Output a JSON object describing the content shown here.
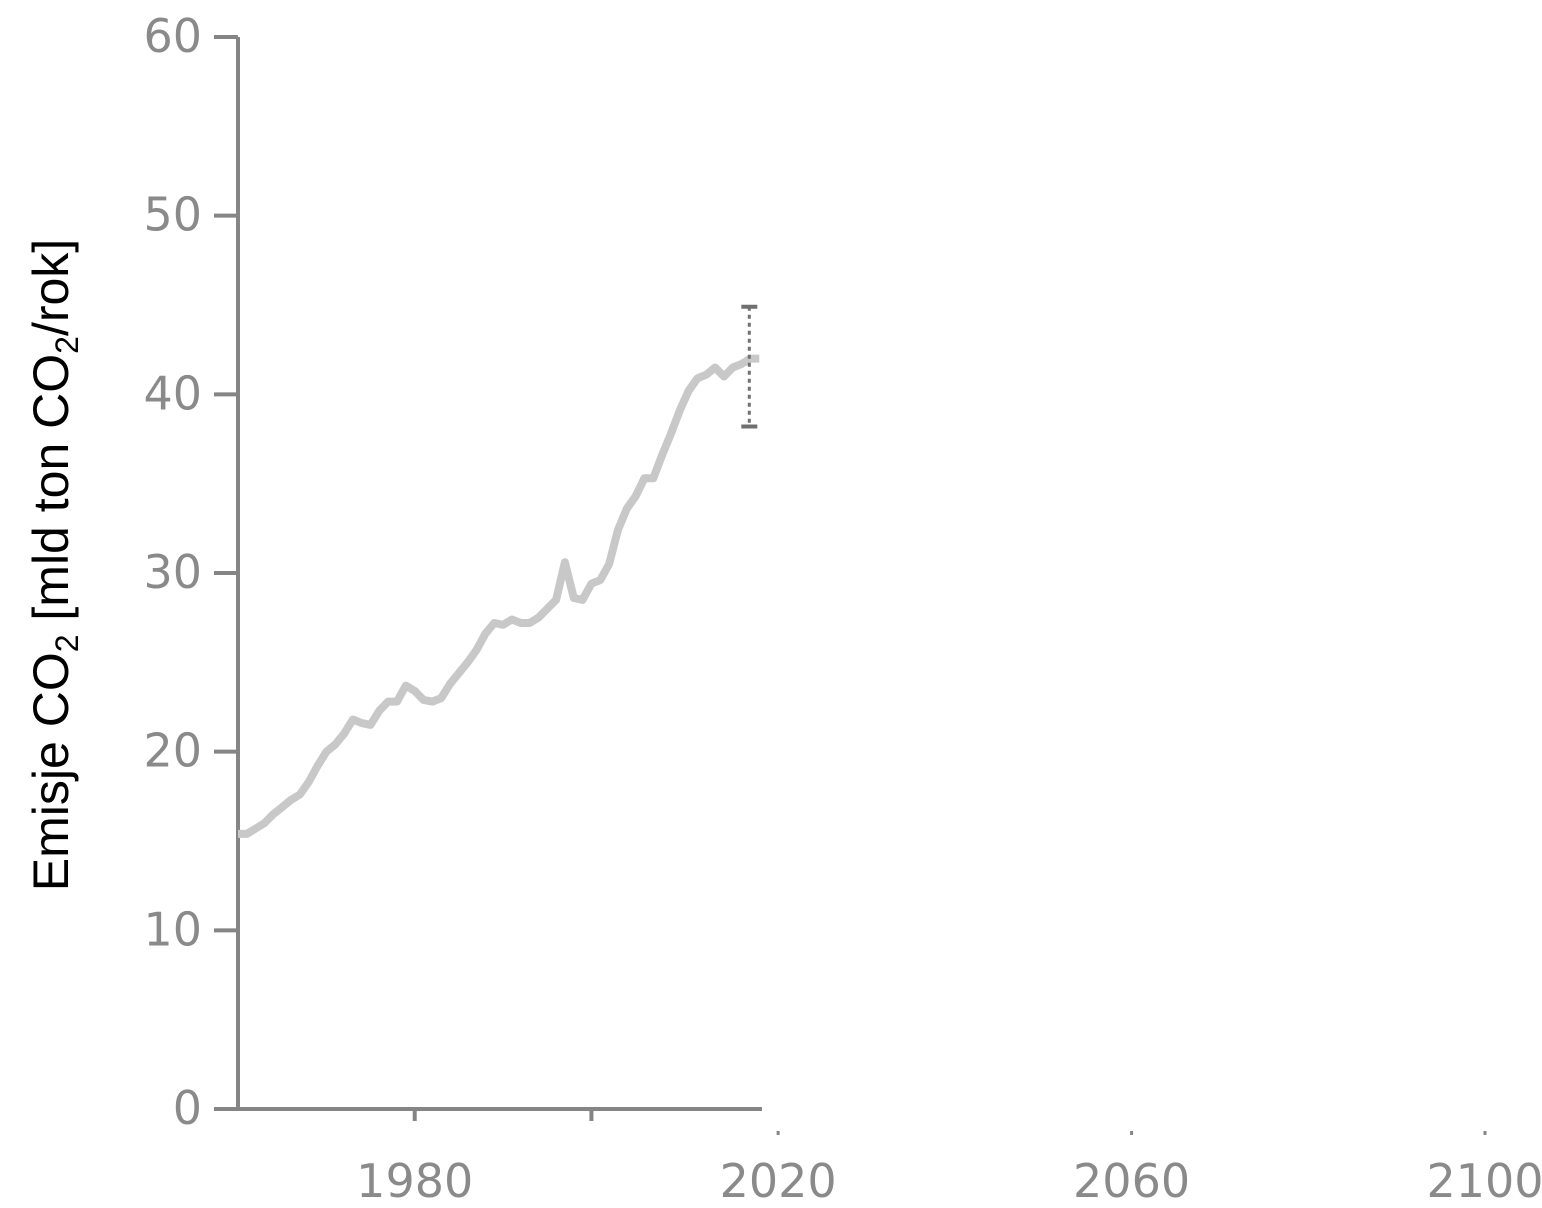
{
  "chart_data": {
    "type": "line",
    "title": "",
    "xlabel": "",
    "ylabel": {
      "prefix": "Emisje CO",
      "sub1": "2",
      "middle": " [mld ton CO",
      "sub2": "2",
      "suffix": "/rok]"
    },
    "xlim": [
      1960,
      2100
    ],
    "ylim": [
      0,
      60
    ],
    "x_ticks": [
      1980,
      2020,
      2060,
      2100
    ],
    "y_ticks": [
      0,
      10,
      20,
      30,
      40,
      50,
      60
    ],
    "grid": false,
    "legend": "none",
    "series": [
      {
        "color": "#c8c8c8",
        "x": [
          1960,
          1961,
          1962,
          1963,
          1964,
          1965,
          1966,
          1967,
          1968,
          1969,
          1970,
          1971,
          1972,
          1973,
          1974,
          1975,
          1976,
          1977,
          1978,
          1979,
          1980,
          1981,
          1982,
          1983,
          1984,
          1985,
          1986,
          1987,
          1988,
          1989,
          1990,
          1991,
          1992,
          1993,
          1994,
          1995,
          1996,
          1997,
          1998,
          1999,
          2000,
          2001,
          2002,
          2003,
          2004,
          2005,
          2006,
          2007,
          2008,
          2009,
          2010,
          2011,
          2012,
          2013,
          2014,
          2015,
          2016,
          2017,
          2018,
          2019
        ],
        "y": [
          15.4,
          15.4,
          15.7,
          16.0,
          16.5,
          16.9,
          17.3,
          17.6,
          18.3,
          19.2,
          20.0,
          20.4,
          21.0,
          21.8,
          21.6,
          21.5,
          22.3,
          22.8,
          22.8,
          23.7,
          23.4,
          22.9,
          22.8,
          23.0,
          23.8,
          24.4,
          25.0,
          25.7,
          26.6,
          27.2,
          27.1,
          27.4,
          27.2,
          27.2,
          27.5,
          28.0,
          28.5,
          30.6,
          28.6,
          28.5,
          29.4,
          29.6,
          30.5,
          32.4,
          33.6,
          34.3,
          35.3,
          35.3,
          36.6,
          37.8,
          39.1,
          40.2,
          40.9,
          41.1,
          41.5,
          41.0,
          41.5,
          41.7,
          42.0,
          42.0
        ]
      }
    ],
    "error_bar": {
      "x": 2019,
      "low": 38.2,
      "high": 44.9,
      "color": "#707070"
    }
  }
}
